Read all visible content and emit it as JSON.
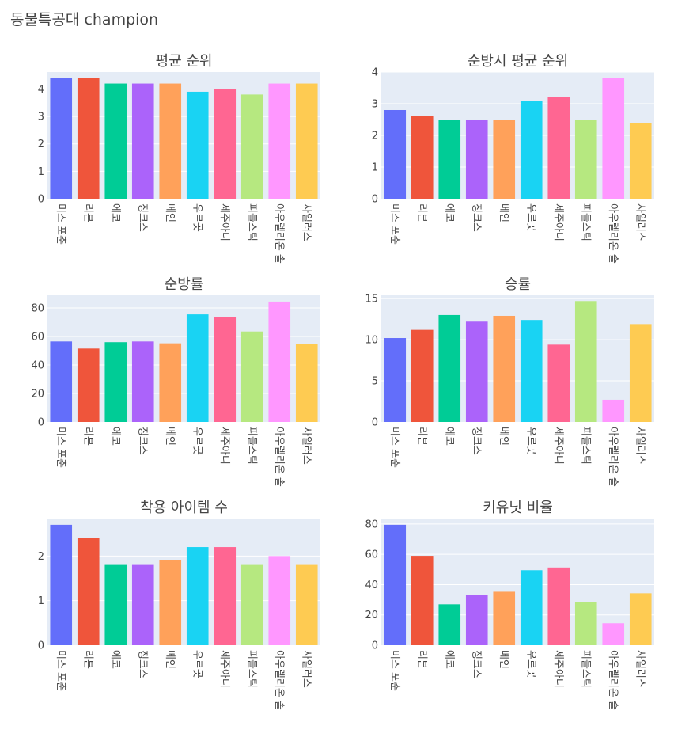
{
  "title": "동물특공대 champion",
  "colors": [
    "#636efa",
    "#EF553B",
    "#00cc96",
    "#ab63fa",
    "#FFA15A",
    "#19d3f3",
    "#FF6692",
    "#B6E880",
    "#FF97FF",
    "#FECB52"
  ],
  "chart_data": [
    {
      "type": "bar",
      "title": "평균 순위",
      "categories": [
        "미스 포춘",
        "리븐",
        "에코",
        "징크스",
        "베인",
        "우르곳",
        "세주아니",
        "피들스틱",
        "아우렐리온 솔",
        "사일러스"
      ],
      "values": [
        4.4,
        4.4,
        4.2,
        4.2,
        4.2,
        3.9,
        4.0,
        3.8,
        4.2,
        4.2
      ],
      "ylim": [
        0,
        4.62
      ],
      "yticks": [
        0,
        1,
        2,
        3,
        4
      ],
      "grid": true
    },
    {
      "type": "bar",
      "title": "순방시 평균 순위",
      "categories": [
        "미스 포춘",
        "리븐",
        "에코",
        "징크스",
        "베인",
        "우르곳",
        "세주아니",
        "피들스틱",
        "아우렐리온 솔",
        "사일러스"
      ],
      "values": [
        2.8,
        2.6,
        2.5,
        2.5,
        2.5,
        3.1,
        3.2,
        2.5,
        3.8,
        2.4
      ],
      "ylim": [
        0,
        4.0
      ],
      "yticks": [
        0,
        1,
        2,
        3,
        4
      ],
      "grid": true
    },
    {
      "type": "bar",
      "title": "순방률",
      "categories": [
        "미스 포춘",
        "리븐",
        "에코",
        "징크스",
        "베인",
        "우르곳",
        "세주아니",
        "피들스틱",
        "아우렐리온 솔",
        "사일러스"
      ],
      "values": [
        56.5,
        51.5,
        56,
        56.5,
        55.2,
        75.5,
        73.5,
        63.5,
        84.5,
        54.5
      ],
      "ylim": [
        0,
        88.9
      ],
      "yticks": [
        0,
        20,
        40,
        60,
        80
      ],
      "grid": true
    },
    {
      "type": "bar",
      "title": "승률",
      "categories": [
        "미스 포춘",
        "리븐",
        "에코",
        "징크스",
        "베인",
        "우르곳",
        "세주아니",
        "피들스틱",
        "아우렐리온 솔",
        "사일러스"
      ],
      "values": [
        10.2,
        11.2,
        13.0,
        12.2,
        12.9,
        12.4,
        9.4,
        14.7,
        2.7,
        11.9
      ],
      "ylim": [
        0,
        15.4
      ],
      "yticks": [
        0,
        5,
        10,
        15
      ],
      "grid": true
    },
    {
      "type": "bar",
      "title": "착용 아이템 수",
      "categories": [
        "미스 포춘",
        "리븐",
        "에코",
        "징크스",
        "베인",
        "우르곳",
        "세주아니",
        "피들스틱",
        "아우렐리온 솔",
        "사일러스"
      ],
      "values": [
        2.7,
        2.4,
        1.8,
        1.8,
        1.9,
        2.2,
        2.2,
        1.8,
        2.0,
        1.8
      ],
      "ylim": [
        0,
        2.84
      ],
      "yticks": [
        0,
        1,
        2
      ],
      "grid": true
    },
    {
      "type": "bar",
      "title": "키유닛 비율",
      "categories": [
        "미스 포춘",
        "리븐",
        "에코",
        "징크스",
        "베인",
        "우르곳",
        "세주아니",
        "피들스틱",
        "아우렐리온 솔",
        "사일러스"
      ],
      "values": [
        79.5,
        59,
        27,
        33,
        35.3,
        49.5,
        51.3,
        28.5,
        14.5,
        34.3
      ],
      "ylim": [
        0,
        83.6
      ],
      "yticks": [
        0,
        20,
        40,
        60,
        80
      ],
      "grid": true
    }
  ]
}
